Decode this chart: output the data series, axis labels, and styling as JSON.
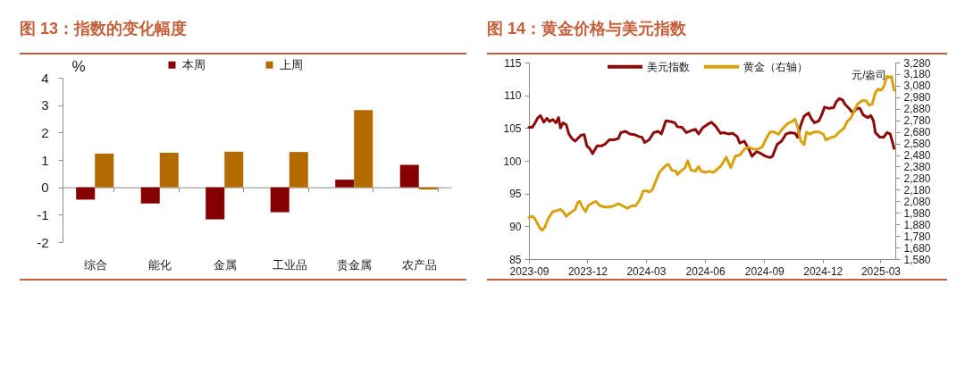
{
  "chart_data": [
    {
      "type": "bar",
      "title": "图 13：指数的变化幅度",
      "ylabel": "%",
      "categories": [
        "综合",
        "能化",
        "金属",
        "工业品",
        "贵金属",
        "农产品"
      ],
      "ylim": [
        -2,
        4
      ],
      "yticks": [
        -2,
        -1,
        0,
        1,
        2,
        3,
        4
      ],
      "legend": "top",
      "series": [
        {
          "name": "本周",
          "color": "#870000",
          "values": [
            -0.45,
            -0.59,
            -1.17,
            -0.91,
            0.28,
            0.82
          ]
        },
        {
          "name": "上周",
          "color": "#b36b00",
          "values": [
            1.23,
            1.26,
            1.3,
            1.29,
            2.82,
            -0.08
          ]
        }
      ]
    },
    {
      "type": "line",
      "title": "图 14：黄金价格与美元指数",
      "y2label": "元/盎司",
      "xlim": [
        "2023-09-01",
        "2025-03-24"
      ],
      "xticks": [
        "2023-09",
        "2023-12",
        "2024-03",
        "2024-06",
        "2024-09",
        "2024-12",
        "2025-03"
      ],
      "ylim": [
        85,
        115
      ],
      "yticks": [
        85,
        90,
        95,
        100,
        105,
        110,
        115
      ],
      "y2lim": [
        1580,
        3280
      ],
      "y2ticks": [
        {
          "value": 1580,
          "label": "1,580"
        },
        {
          "value": 1680,
          "label": "1,680"
        },
        {
          "value": 1780,
          "label": "1,780"
        },
        {
          "value": 1880,
          "label": "1,880"
        },
        {
          "value": 1980,
          "label": "1,980"
        },
        {
          "value": 2080,
          "label": "2,080"
        },
        {
          "value": 2180,
          "label": "2,180"
        },
        {
          "value": 2280,
          "label": "2,280"
        },
        {
          "value": 2380,
          "label": "2,380"
        },
        {
          "value": 2480,
          "label": "2,480"
        },
        {
          "value": 2580,
          "label": "2,580"
        },
        {
          "value": 2680,
          "label": "2,680"
        },
        {
          "value": 2780,
          "label": "2,780"
        },
        {
          "value": 2880,
          "label": "2,880"
        },
        {
          "value": 2980,
          "label": "2,980"
        },
        {
          "value": 3080,
          "label": "3,080"
        },
        {
          "value": 3180,
          "label": "3,180"
        },
        {
          "value": 3280,
          "label": "3,280"
        }
      ],
      "legend": "top",
      "series": [
        {
          "name": "美元指数",
          "color": "#8c0a0a",
          "x": [
            "2023-09-01",
            "2023-09-06",
            "2023-09-10",
            "2023-09-15",
            "2023-09-19",
            "2023-09-24",
            "2023-09-29",
            "2023-10-03",
            "2023-10-08",
            "2023-10-13",
            "2023-10-17",
            "2023-10-20",
            "2023-10-24",
            "2023-10-29",
            "2023-11-02",
            "2023-11-07",
            "2023-11-12",
            "2023-11-16",
            "2023-11-21",
            "2023-11-26",
            "2023-11-30",
            "2023-12-05",
            "2023-12-09",
            "2023-12-16",
            "2023-12-23",
            "2023-12-28",
            "2024-01-04",
            "2024-01-11",
            "2024-01-18",
            "2024-01-22",
            "2024-01-29",
            "2024-02-05",
            "2024-02-12",
            "2024-02-19",
            "2024-02-24",
            "2024-02-28",
            "2024-03-06",
            "2024-03-13",
            "2024-03-20",
            "2024-03-25",
            "2024-04-01",
            "2024-04-08",
            "2024-04-15",
            "2024-04-19",
            "2024-04-26",
            "2024-05-03",
            "2024-05-10",
            "2024-05-17",
            "2024-05-22",
            "2024-05-28",
            "2024-06-04",
            "2024-06-11",
            "2024-06-18",
            "2024-06-25",
            "2024-06-30",
            "2024-07-07",
            "2024-07-14",
            "2024-07-21",
            "2024-07-25",
            "2024-08-01",
            "2024-08-08",
            "2024-08-13",
            "2024-08-20",
            "2024-08-27",
            "2024-09-03",
            "2024-09-10",
            "2024-09-14",
            "2024-09-21",
            "2024-09-28",
            "2024-10-05",
            "2024-10-12",
            "2024-10-19",
            "2024-10-23",
            "2024-10-28",
            "2024-11-02",
            "2024-11-09",
            "2024-11-13",
            "2024-11-18",
            "2024-11-25",
            "2024-11-29",
            "2024-12-04",
            "2024-12-11",
            "2024-12-18",
            "2024-12-22",
            "2024-12-27",
            "2025-01-01",
            "2025-01-05",
            "2025-01-12",
            "2025-01-17",
            "2025-01-23",
            "2025-01-28",
            "2025-02-02",
            "2025-02-09",
            "2025-02-14",
            "2025-02-18",
            "2025-02-21",
            "2025-02-28",
            "2025-03-06",
            "2025-03-11",
            "2025-03-16",
            "2025-03-20",
            "2025-03-22"
          ],
          "values": [
            105.1,
            105.1,
            105.7,
            106.6,
            106.9,
            105.9,
            106.5,
            106.0,
            106.3,
            105.8,
            106.6,
            105.0,
            105.8,
            105.5,
            104.1,
            103.4,
            103.0,
            103.4,
            103.9,
            104.0,
            102.3,
            101.8,
            101.1,
            102.3,
            102.3,
            102.5,
            103.2,
            103.2,
            103.4,
            104.3,
            104.5,
            104.1,
            104.0,
            103.7,
            103.6,
            102.8,
            103.2,
            104.3,
            104.5,
            104.1,
            106.1,
            106.0,
            105.8,
            105.2,
            105.1,
            104.3,
            104.6,
            104.8,
            104.1,
            105.0,
            105.5,
            105.9,
            105.2,
            104.2,
            104.3,
            104.1,
            104.2,
            103.7,
            102.7,
            103.0,
            101.8,
            100.7,
            101.4,
            101.1,
            100.7,
            100.5,
            100.7,
            102.5,
            103.0,
            104.1,
            104.3,
            104.2,
            103.6,
            105.5,
            106.8,
            107.3,
            106.5,
            105.8,
            106.1,
            106.9,
            108.2,
            108.0,
            108.1,
            109.0,
            109.5,
            109.3,
            108.6,
            107.9,
            107.3,
            108.0,
            108.0,
            107.0,
            106.6,
            106.9,
            106.1,
            104.3,
            103.6,
            103.6,
            104.3,
            104.1,
            102.7,
            101.9
          ]
        },
        {
          "name": "黄金（右轴）",
          "color": "#d6a30e",
          "axis": "y2",
          "x": [
            "2023-09-01",
            "2023-09-06",
            "2023-09-10",
            "2023-09-15",
            "2023-09-19",
            "2023-09-22",
            "2023-09-26",
            "2023-10-01",
            "2023-10-08",
            "2023-10-15",
            "2023-10-20",
            "2023-10-24",
            "2023-10-29",
            "2023-11-02",
            "2023-11-07",
            "2023-11-12",
            "2023-11-16",
            "2023-11-19",
            "2023-11-23",
            "2023-11-28",
            "2023-12-02",
            "2023-12-07",
            "2023-12-14",
            "2023-12-21",
            "2023-12-28",
            "2024-01-04",
            "2024-01-11",
            "2024-01-18",
            "2024-01-25",
            "2024-02-01",
            "2024-02-08",
            "2024-02-14",
            "2024-02-21",
            "2024-02-26",
            "2024-03-02",
            "2024-03-06",
            "2024-03-11",
            "2024-03-16",
            "2024-03-22",
            "2024-03-25",
            "2024-04-01",
            "2024-04-05",
            "2024-04-10",
            "2024-04-17",
            "2024-04-19",
            "2024-04-24",
            "2024-05-01",
            "2024-05-05",
            "2024-05-10",
            "2024-05-17",
            "2024-05-22",
            "2024-05-26",
            "2024-06-02",
            "2024-06-07",
            "2024-06-14",
            "2024-06-25",
            "2024-07-04",
            "2024-07-11",
            "2024-07-18",
            "2024-07-25",
            "2024-08-01",
            "2024-08-08",
            "2024-08-15",
            "2024-08-22",
            "2024-08-29",
            "2024-09-03",
            "2024-09-10",
            "2024-09-16",
            "2024-09-23",
            "2024-09-30",
            "2024-10-07",
            "2024-10-14",
            "2024-10-19",
            "2024-10-23",
            "2024-10-28",
            "2024-11-02",
            "2024-11-06",
            "2024-11-11",
            "2024-11-18",
            "2024-11-25",
            "2024-12-02",
            "2024-12-06",
            "2024-12-13",
            "2024-12-20",
            "2024-12-27",
            "2025-01-03",
            "2025-01-08",
            "2025-01-14",
            "2025-01-19",
            "2025-01-24",
            "2025-01-31",
            "2025-02-07",
            "2025-02-11",
            "2025-02-16",
            "2025-02-21",
            "2025-02-25",
            "2025-03-02",
            "2025-03-06",
            "2025-03-11",
            "2025-03-16",
            "2025-03-18",
            "2025-03-22"
          ],
          "values": [
            1940,
            1950,
            1930,
            1880,
            1840,
            1830,
            1860,
            1930,
            1990,
            2000,
            2010,
            1990,
            1950,
            1970,
            1990,
            2010,
            2070,
            2080,
            2030,
            1990,
            2040,
            2060,
            2080,
            2040,
            2030,
            2030,
            2040,
            2060,
            2040,
            2020,
            2040,
            2040,
            2100,
            2170,
            2170,
            2160,
            2180,
            2250,
            2330,
            2350,
            2390,
            2400,
            2350,
            2340,
            2310,
            2340,
            2370,
            2430,
            2350,
            2340,
            2380,
            2340,
            2330,
            2340,
            2330,
            2380,
            2460,
            2370,
            2470,
            2480,
            2530,
            2550,
            2530,
            2530,
            2550,
            2610,
            2680,
            2680,
            2660,
            2710,
            2750,
            2770,
            2790,
            2720,
            2600,
            2570,
            2680,
            2660,
            2680,
            2680,
            2660,
            2610,
            2630,
            2640,
            2680,
            2710,
            2770,
            2800,
            2860,
            2920,
            2950,
            2950,
            2910,
            2920,
            3020,
            3050,
            3040,
            3070,
            3160,
            3150,
            3160,
            3040
          ]
        }
      ]
    }
  ]
}
